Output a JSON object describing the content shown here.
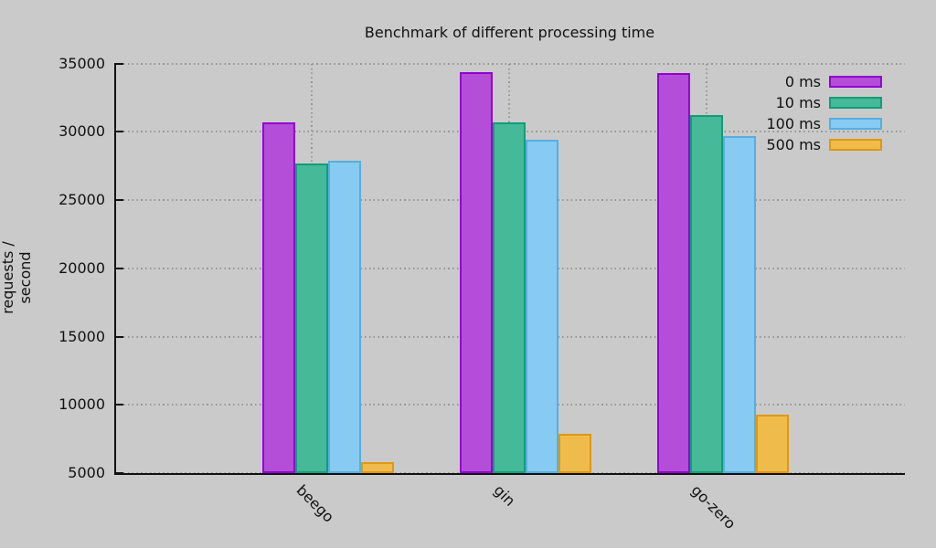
{
  "chart_data": {
    "type": "bar",
    "title": "Benchmark of different processing time",
    "xlabel": "",
    "ylabel": "requests / second",
    "categories": [
      "beego",
      "gin",
      "go-zero"
    ],
    "series": [
      {
        "name": "0 ms",
        "color": "#b44dd8",
        "border": "#9400d3",
        "values": [
          30700,
          34350,
          34300
        ]
      },
      {
        "name": "10 ms",
        "color": "#45b998",
        "border": "#0f9e78",
        "values": [
          27700,
          30700,
          31250
        ]
      },
      {
        "name": "100 ms",
        "color": "#87cbf2",
        "border": "#56aee0",
        "values": [
          27850,
          29400,
          29650
        ]
      },
      {
        "name": "500 ms",
        "color": "#efbc4b",
        "border": "#e0980f",
        "values": [
          5800,
          7900,
          9250
        ]
      }
    ],
    "ylim": [
      5000,
      35000
    ],
    "yticks": [
      5000,
      10000,
      15000,
      20000,
      25000,
      30000,
      35000
    ],
    "grid": true,
    "legend_position": "top-right",
    "background_color": "#cacaca",
    "grid_color": "#979797",
    "axis_color": "#111111"
  }
}
